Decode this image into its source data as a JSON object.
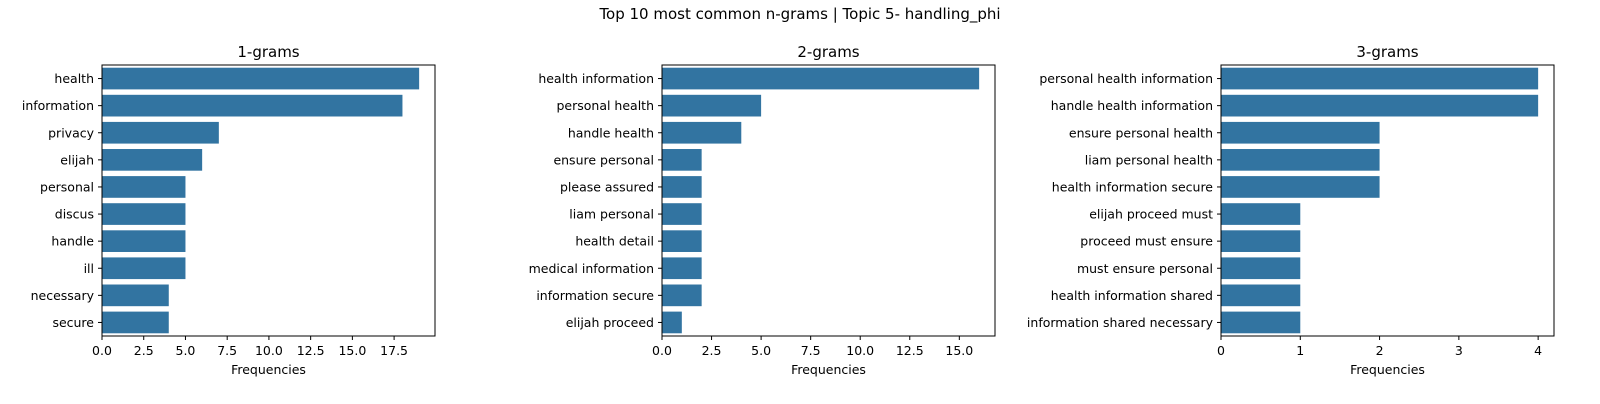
{
  "figure": {
    "title": "Top 10 most common n-grams | Topic 5- handling_phi"
  },
  "colors": {
    "bar": "#3274a1",
    "axis": "#000000"
  },
  "chart_data": [
    {
      "type": "bar",
      "orientation": "horizontal",
      "title": "1-grams",
      "xlabel": "Frequencies",
      "ylabel": "",
      "xlim": [
        0,
        19.95
      ],
      "xticks": [
        0,
        2.5,
        5,
        7.5,
        10,
        12.5,
        15,
        17.5
      ],
      "xtick_labels": [
        "0.0",
        "2.5",
        "5.0",
        "7.5",
        "10.0",
        "12.5",
        "15.0",
        "17.5"
      ],
      "categories": [
        "health",
        "information",
        "privacy",
        "elijah",
        "personal",
        "discus",
        "handle",
        "ill",
        "necessary",
        "secure"
      ],
      "values": [
        19,
        18,
        7,
        6,
        5,
        5,
        5,
        5,
        4,
        4
      ],
      "grid": false
    },
    {
      "type": "bar",
      "orientation": "horizontal",
      "title": "2-grams",
      "xlabel": "Frequencies",
      "ylabel": "",
      "xlim": [
        0,
        16.8
      ],
      "xticks": [
        0,
        2.5,
        5,
        7.5,
        10,
        12.5,
        15
      ],
      "xtick_labels": [
        "0.0",
        "2.5",
        "5.0",
        "7.5",
        "10.0",
        "12.5",
        "15.0"
      ],
      "categories": [
        "health information",
        "personal health",
        "handle health",
        "ensure personal",
        "please assured",
        "liam personal",
        "health detail",
        "medical information",
        "information secure",
        "elijah proceed"
      ],
      "values": [
        16,
        5,
        4,
        2,
        2,
        2,
        2,
        2,
        2,
        1
      ],
      "grid": false
    },
    {
      "type": "bar",
      "orientation": "horizontal",
      "title": "3-grams",
      "xlabel": "Frequencies",
      "ylabel": "",
      "xlim": [
        0,
        4.2
      ],
      "xticks": [
        0,
        1,
        2,
        3,
        4
      ],
      "xtick_labels": [
        "0",
        "1",
        "2",
        "3",
        "4"
      ],
      "categories": [
        "personal health information",
        "handle health information",
        "ensure personal health",
        "liam personal health",
        "health information secure",
        "elijah proceed must",
        "proceed must ensure",
        "must ensure personal",
        "health information shared",
        "information shared necessary"
      ],
      "values": [
        4,
        4,
        2,
        2,
        2,
        1,
        1,
        1,
        1,
        1
      ],
      "grid": false
    }
  ]
}
